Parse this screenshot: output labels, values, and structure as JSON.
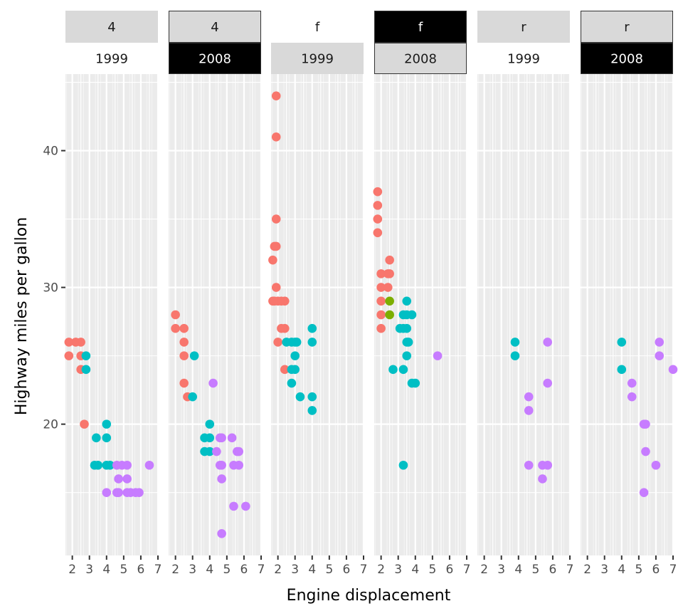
{
  "chart_data": {
    "type": "scatter",
    "title": "",
    "xlabel": "Engine displacement",
    "ylabel": "Highway miles per gallon",
    "xlim": [
      1.6,
      7.0
    ],
    "ylim": [
      10.4,
      45.6
    ],
    "x_ticks": [
      "2",
      "3",
      "4",
      "5",
      "6",
      "7"
    ],
    "x_tick_values": [
      2,
      3,
      4,
      5,
      6,
      7
    ],
    "y_ticks": [
      "20",
      "30",
      "40"
    ],
    "y_tick_values": [
      20,
      30,
      40
    ],
    "grid": true,
    "legend": "none",
    "colors": {
      "compact": "#F8766D",
      "midsize": "#7CAE00",
      "suv": "#00BFC4",
      "pickup": "#C77CFF",
      "strip_gray": "#d9d9d9",
      "strip_black": "#000000",
      "panel_bg": "#ebebeb",
      "grid": "#ffffff"
    },
    "panels": [
      {
        "drv": "4",
        "year": "1999",
        "drv_strip": {
          "fill": "#d9d9d9",
          "text_color": "#1a1a1a",
          "border": false
        },
        "year_strip": {
          "fill": "#ffffff",
          "text_color": "#1a1a1a",
          "border": false
        },
        "points": [
          {
            "x": 1.8,
            "y": 26,
            "c": "compact"
          },
          {
            "x": 2.2,
            "y": 26,
            "c": "compact"
          },
          {
            "x": 2.5,
            "y": 26,
            "c": "compact"
          },
          {
            "x": 1.8,
            "y": 25,
            "c": "compact"
          },
          {
            "x": 2.5,
            "y": 25,
            "c": "compact"
          },
          {
            "x": 2.8,
            "y": 25,
            "c": "suv"
          },
          {
            "x": 2.5,
            "y": 24,
            "c": "compact"
          },
          {
            "x": 2.8,
            "y": 24,
            "c": "suv"
          },
          {
            "x": 2.7,
            "y": 20,
            "c": "compact"
          },
          {
            "x": 4.0,
            "y": 20,
            "c": "suv"
          },
          {
            "x": 3.4,
            "y": 19,
            "c": "suv"
          },
          {
            "x": 4.0,
            "y": 19,
            "c": "suv"
          },
          {
            "x": 3.3,
            "y": 17,
            "c": "suv"
          },
          {
            "x": 3.5,
            "y": 17,
            "c": "suv"
          },
          {
            "x": 4.0,
            "y": 17,
            "c": "suv"
          },
          {
            "x": 4.2,
            "y": 17,
            "c": "suv"
          },
          {
            "x": 4.6,
            "y": 17,
            "c": "pickup"
          },
          {
            "x": 4.9,
            "y": 17,
            "c": "pickup"
          },
          {
            "x": 5.2,
            "y": 17,
            "c": "pickup"
          },
          {
            "x": 6.5,
            "y": 17,
            "c": "pickup"
          },
          {
            "x": 4.7,
            "y": 16,
            "c": "pickup"
          },
          {
            "x": 5.2,
            "y": 16,
            "c": "pickup"
          },
          {
            "x": 4.0,
            "y": 15,
            "c": "pickup"
          },
          {
            "x": 4.6,
            "y": 15,
            "c": "pickup"
          },
          {
            "x": 4.7,
            "y": 15,
            "c": "pickup"
          },
          {
            "x": 5.2,
            "y": 15,
            "c": "pickup"
          },
          {
            "x": 5.4,
            "y": 15,
            "c": "pickup"
          },
          {
            "x": 5.7,
            "y": 15,
            "c": "pickup"
          },
          {
            "x": 5.9,
            "y": 15,
            "c": "pickup"
          }
        ]
      },
      {
        "drv": "4",
        "year": "2008",
        "drv_strip": {
          "fill": "#d9d9d9",
          "text_color": "#1a1a1a",
          "border": true
        },
        "year_strip": {
          "fill": "#000000",
          "text_color": "#ffffff",
          "border": true
        },
        "points": [
          {
            "x": 2.0,
            "y": 28,
            "c": "compact"
          },
          {
            "x": 2.0,
            "y": 27,
            "c": "compact"
          },
          {
            "x": 2.5,
            "y": 27,
            "c": "compact"
          },
          {
            "x": 2.5,
            "y": 26,
            "c": "compact"
          },
          {
            "x": 2.5,
            "y": 25,
            "c": "compact"
          },
          {
            "x": 3.1,
            "y": 25,
            "c": "suv"
          },
          {
            "x": 2.5,
            "y": 23,
            "c": "compact"
          },
          {
            "x": 4.2,
            "y": 23,
            "c": "pickup"
          },
          {
            "x": 2.7,
            "y": 22,
            "c": "compact"
          },
          {
            "x": 3.0,
            "y": 22,
            "c": "suv"
          },
          {
            "x": 4.0,
            "y": 20,
            "c": "suv"
          },
          {
            "x": 3.7,
            "y": 19,
            "c": "suv"
          },
          {
            "x": 4.0,
            "y": 19,
            "c": "suv"
          },
          {
            "x": 4.6,
            "y": 19,
            "c": "pickup"
          },
          {
            "x": 4.7,
            "y": 19,
            "c": "pickup"
          },
          {
            "x": 5.3,
            "y": 19,
            "c": "pickup"
          },
          {
            "x": 3.7,
            "y": 18,
            "c": "suv"
          },
          {
            "x": 4.0,
            "y": 18,
            "c": "suv"
          },
          {
            "x": 4.4,
            "y": 18,
            "c": "pickup"
          },
          {
            "x": 5.6,
            "y": 18,
            "c": "pickup"
          },
          {
            "x": 5.7,
            "y": 18,
            "c": "pickup"
          },
          {
            "x": 4.6,
            "y": 17,
            "c": "pickup"
          },
          {
            "x": 4.7,
            "y": 17,
            "c": "pickup"
          },
          {
            "x": 5.4,
            "y": 17,
            "c": "pickup"
          },
          {
            "x": 5.7,
            "y": 17,
            "c": "pickup"
          },
          {
            "x": 4.7,
            "y": 16,
            "c": "pickup"
          },
          {
            "x": 5.4,
            "y": 14,
            "c": "pickup"
          },
          {
            "x": 6.1,
            "y": 14,
            "c": "pickup"
          },
          {
            "x": 4.7,
            "y": 12,
            "c": "pickup"
          }
        ]
      },
      {
        "drv": "f",
        "year": "1999",
        "drv_strip": {
          "fill": "#ffffff",
          "text_color": "#1a1a1a",
          "border": false
        },
        "year_strip": {
          "fill": "#d9d9d9",
          "text_color": "#1a1a1a",
          "border": false
        },
        "points": [
          {
            "x": 1.9,
            "y": 44,
            "c": "compact"
          },
          {
            "x": 1.9,
            "y": 41,
            "c": "compact"
          },
          {
            "x": 1.9,
            "y": 35,
            "c": "compact"
          },
          {
            "x": 1.8,
            "y": 33,
            "c": "compact"
          },
          {
            "x": 1.9,
            "y": 33,
            "c": "compact"
          },
          {
            "x": 1.7,
            "y": 32,
            "c": "compact"
          },
          {
            "x": 1.9,
            "y": 30,
            "c": "compact"
          },
          {
            "x": 1.7,
            "y": 29,
            "c": "compact"
          },
          {
            "x": 1.8,
            "y": 29,
            "c": "compact"
          },
          {
            "x": 2.0,
            "y": 29,
            "c": "compact"
          },
          {
            "x": 2.2,
            "y": 29,
            "c": "compact"
          },
          {
            "x": 2.4,
            "y": 29,
            "c": "compact"
          },
          {
            "x": 2.2,
            "y": 27,
            "c": "compact"
          },
          {
            "x": 2.4,
            "y": 27,
            "c": "compact"
          },
          {
            "x": 4.0,
            "y": 27,
            "c": "suv"
          },
          {
            "x": 2.0,
            "y": 26,
            "c": "compact"
          },
          {
            "x": 2.5,
            "y": 26,
            "c": "suv"
          },
          {
            "x": 2.8,
            "y": 26,
            "c": "suv"
          },
          {
            "x": 3.0,
            "y": 26,
            "c": "suv"
          },
          {
            "x": 3.1,
            "y": 26,
            "c": "suv"
          },
          {
            "x": 4.0,
            "y": 26,
            "c": "suv"
          },
          {
            "x": 3.0,
            "y": 25,
            "c": "suv"
          },
          {
            "x": 2.4,
            "y": 24,
            "c": "compact"
          },
          {
            "x": 2.8,
            "y": 24,
            "c": "suv"
          },
          {
            "x": 3.0,
            "y": 24,
            "c": "suv"
          },
          {
            "x": 2.8,
            "y": 23,
            "c": "suv"
          },
          {
            "x": 3.3,
            "y": 22,
            "c": "suv"
          },
          {
            "x": 4.0,
            "y": 22,
            "c": "suv"
          },
          {
            "x": 4.0,
            "y": 21,
            "c": "suv"
          }
        ]
      },
      {
        "drv": "f",
        "year": "2008",
        "drv_strip": {
          "fill": "#000000",
          "text_color": "#ffffff",
          "border": true
        },
        "year_strip": {
          "fill": "#d9d9d9",
          "text_color": "#1a1a1a",
          "border": true
        },
        "points": [
          {
            "x": 1.8,
            "y": 37,
            "c": "compact"
          },
          {
            "x": 1.8,
            "y": 36,
            "c": "compact"
          },
          {
            "x": 1.8,
            "y": 35,
            "c": "compact"
          },
          {
            "x": 1.8,
            "y": 34,
            "c": "compact"
          },
          {
            "x": 2.5,
            "y": 32,
            "c": "compact"
          },
          {
            "x": 2.0,
            "y": 31,
            "c": "compact"
          },
          {
            "x": 2.4,
            "y": 31,
            "c": "compact"
          },
          {
            "x": 2.5,
            "y": 31,
            "c": "compact"
          },
          {
            "x": 2.0,
            "y": 30,
            "c": "compact"
          },
          {
            "x": 2.4,
            "y": 30,
            "c": "compact"
          },
          {
            "x": 2.0,
            "y": 29,
            "c": "compact"
          },
          {
            "x": 2.5,
            "y": 29,
            "c": "midsize"
          },
          {
            "x": 3.5,
            "y": 29,
            "c": "suv"
          },
          {
            "x": 2.0,
            "y": 28,
            "c": "compact"
          },
          {
            "x": 2.5,
            "y": 28,
            "c": "midsize"
          },
          {
            "x": 3.3,
            "y": 28,
            "c": "suv"
          },
          {
            "x": 3.5,
            "y": 28,
            "c": "suv"
          },
          {
            "x": 3.8,
            "y": 28,
            "c": "suv"
          },
          {
            "x": 2.0,
            "y": 27,
            "c": "compact"
          },
          {
            "x": 3.1,
            "y": 27,
            "c": "suv"
          },
          {
            "x": 3.3,
            "y": 27,
            "c": "suv"
          },
          {
            "x": 3.5,
            "y": 27,
            "c": "suv"
          },
          {
            "x": 3.5,
            "y": 26,
            "c": "suv"
          },
          {
            "x": 3.6,
            "y": 26,
            "c": "suv"
          },
          {
            "x": 3.5,
            "y": 25,
            "c": "suv"
          },
          {
            "x": 5.3,
            "y": 25,
            "c": "pickup"
          },
          {
            "x": 2.7,
            "y": 24,
            "c": "suv"
          },
          {
            "x": 3.3,
            "y": 24,
            "c": "suv"
          },
          {
            "x": 3.8,
            "y": 23,
            "c": "suv"
          },
          {
            "x": 4.0,
            "y": 23,
            "c": "suv"
          },
          {
            "x": 3.3,
            "y": 17,
            "c": "suv"
          }
        ]
      },
      {
        "drv": "r",
        "year": "1999",
        "drv_strip": {
          "fill": "#d9d9d9",
          "text_color": "#1a1a1a",
          "border": false
        },
        "year_strip": {
          "fill": "#ffffff",
          "text_color": "#1a1a1a",
          "border": false
        },
        "points": [
          {
            "x": 3.8,
            "y": 26,
            "c": "suv"
          },
          {
            "x": 5.7,
            "y": 26,
            "c": "pickup"
          },
          {
            "x": 3.8,
            "y": 25,
            "c": "suv"
          },
          {
            "x": 5.7,
            "y": 23,
            "c": "pickup"
          },
          {
            "x": 4.6,
            "y": 22,
            "c": "pickup"
          },
          {
            "x": 4.6,
            "y": 21,
            "c": "pickup"
          },
          {
            "x": 4.6,
            "y": 17,
            "c": "pickup"
          },
          {
            "x": 5.4,
            "y": 17,
            "c": "pickup"
          },
          {
            "x": 5.7,
            "y": 17,
            "c": "pickup"
          },
          {
            "x": 5.4,
            "y": 16,
            "c": "pickup"
          }
        ]
      },
      {
        "drv": "r",
        "year": "2008",
        "drv_strip": {
          "fill": "#d9d9d9",
          "text_color": "#1a1a1a",
          "border": true
        },
        "year_strip": {
          "fill": "#000000",
          "text_color": "#ffffff",
          "border": true
        },
        "points": [
          {
            "x": 4.0,
            "y": 26,
            "c": "suv"
          },
          {
            "x": 6.2,
            "y": 26,
            "c": "pickup"
          },
          {
            "x": 6.2,
            "y": 25,
            "c": "pickup"
          },
          {
            "x": 4.0,
            "y": 24,
            "c": "suv"
          },
          {
            "x": 7.0,
            "y": 24,
            "c": "pickup"
          },
          {
            "x": 4.6,
            "y": 23,
            "c": "pickup"
          },
          {
            "x": 4.6,
            "y": 22,
            "c": "pickup"
          },
          {
            "x": 5.3,
            "y": 20,
            "c": "pickup"
          },
          {
            "x": 5.4,
            "y": 20,
            "c": "pickup"
          },
          {
            "x": 5.4,
            "y": 18,
            "c": "pickup"
          },
          {
            "x": 6.0,
            "y": 17,
            "c": "pickup"
          },
          {
            "x": 5.3,
            "y": 15,
            "c": "pickup"
          }
        ]
      }
    ]
  }
}
